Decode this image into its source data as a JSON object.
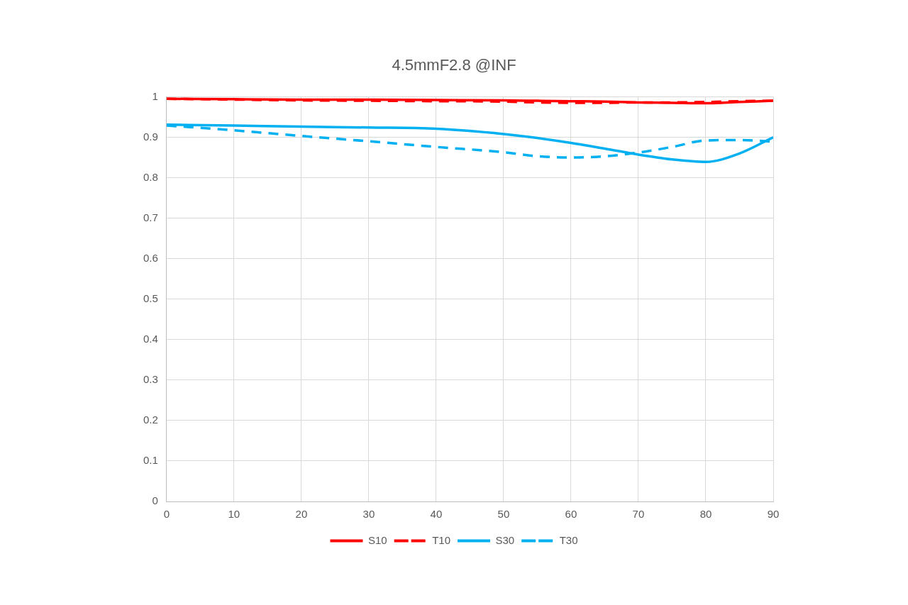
{
  "chart_data": {
    "type": "line",
    "title": "4.5mmF2.8 @INF",
    "x": [
      0,
      10,
      20,
      30,
      40,
      50,
      55,
      60,
      65,
      70,
      75,
      80,
      85,
      90
    ],
    "xlim": [
      0,
      90
    ],
    "xticks": [
      0,
      10,
      20,
      30,
      40,
      50,
      60,
      70,
      80,
      90
    ],
    "ylim": [
      0,
      1
    ],
    "yticks": [
      0,
      0.1,
      0.2,
      0.3,
      0.4,
      0.5,
      0.6,
      0.7,
      0.8,
      0.9,
      1
    ],
    "grid": true,
    "legend": "bottom",
    "marker": "none",
    "series": [
      {
        "name": "S10",
        "color": "#ff0000",
        "line_style": "solid",
        "values": [
          0.995,
          0.994,
          0.993,
          0.993,
          0.992,
          0.991,
          0.99,
          0.989,
          0.988,
          0.986,
          0.985,
          0.984,
          0.987,
          0.99
        ]
      },
      {
        "name": "T10",
        "color": "#ff0000",
        "line_style": "dashed",
        "values": [
          0.995,
          0.993,
          0.991,
          0.99,
          0.989,
          0.988,
          0.986,
          0.985,
          0.985,
          0.986,
          0.986,
          0.987,
          0.989,
          0.99
        ]
      },
      {
        "name": "S30",
        "color": "#00b0f0",
        "line_style": "solid",
        "values": [
          0.931,
          0.929,
          0.926,
          0.924,
          0.921,
          0.908,
          0.898,
          0.886,
          0.872,
          0.857,
          0.845,
          0.839,
          0.86,
          0.9
        ]
      },
      {
        "name": "T30",
        "color": "#00b0f0",
        "line_style": "dashed",
        "values": [
          0.929,
          0.917,
          0.903,
          0.89,
          0.876,
          0.863,
          0.853,
          0.85,
          0.853,
          0.862,
          0.876,
          0.892,
          0.893,
          0.889
        ]
      }
    ]
  }
}
